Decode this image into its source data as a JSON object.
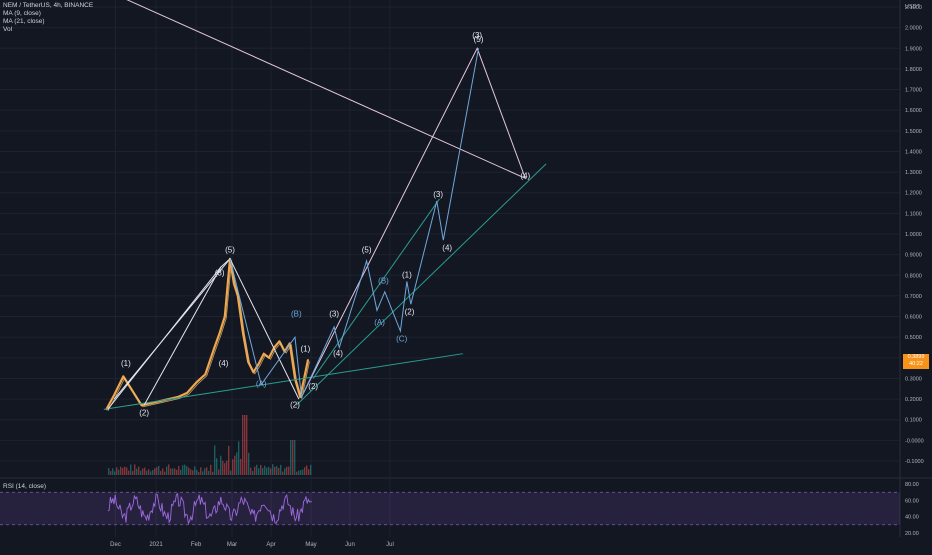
{
  "header": {
    "symbol_line": "NEM / TetherUS, 4h, BINANCE",
    "indicators": [
      "MA (9, close)",
      "MA (21, close)",
      "Vol"
    ],
    "rsi_label": "RSI (14, close)"
  },
  "price_tag": {
    "value": "0.3899",
    "countdown": "40:22"
  },
  "colors": {
    "background": "#131722",
    "grid": "#1e2230",
    "price_line": "#f0a64d",
    "ma_fast": "#e8c37a",
    "white_projection": "#e6e6f0",
    "blue_projection": "#6fa8dc",
    "pink_projection": "#e3c6dc",
    "teal_trendline": "#2a9d8f",
    "rsi_band": "#7e57c2",
    "rsi_line": "#9c6ade",
    "price_tag": "#f7931a"
  },
  "chart_data": [
    {
      "type": "line",
      "title": "NEM / TetherUS, 4h, BINANCE",
      "y_axis_unit": "USDT",
      "y_ticks": [
        "2.1000",
        "2.0000",
        "1.9000",
        "1.8000",
        "1.7000",
        "1.6000",
        "1.5000",
        "1.4000",
        "1.3000",
        "1.2000",
        "1.1000",
        "1.0000",
        "0.9000",
        "0.8000",
        "0.7000",
        "0.6000",
        "0.5000",
        "0.4000",
        "0.3000",
        "0.2000",
        "0.1000",
        "-0.0000",
        "-0.1000"
      ],
      "x_ticks": [
        "Dec",
        "2021",
        "Feb",
        "Mar",
        "Apr",
        "May",
        "Jun",
        "Jul"
      ],
      "last_price": 0.3899,
      "series": [
        {
          "key": "price",
          "x": [
            "Nov 25",
            "Dec 1",
            "Dec 8",
            "Dec 15",
            "Dec 22",
            "Dec 29",
            "Jan 5",
            "Jan 12",
            "Jan 19",
            "Jan 26",
            "Feb 2",
            "Feb 9",
            "Feb 16",
            "Feb 20",
            "Feb 24",
            "Feb 28",
            "Mar 3",
            "Mar 6",
            "Mar 10",
            "Mar 14",
            "Mar 18",
            "Mar 22",
            "Mar 26",
            "Mar 30",
            "Apr 3",
            "Apr 7",
            "Apr 11",
            "Apr 15",
            "Apr 19",
            "Apr 23",
            "Apr 26",
            "Apr 29"
          ],
          "values": [
            0.15,
            0.22,
            0.31,
            0.24,
            0.17,
            0.18,
            0.19,
            0.2,
            0.21,
            0.23,
            0.28,
            0.32,
            0.45,
            0.52,
            0.6,
            0.88,
            0.76,
            0.7,
            0.52,
            0.38,
            0.33,
            0.37,
            0.42,
            0.4,
            0.45,
            0.48,
            0.43,
            0.47,
            0.3,
            0.21,
            0.3,
            0.39
          ]
        }
      ],
      "wave_labels": [
        {
          "text": "(1)",
          "color": "white",
          "x": "Dec 10",
          "y": 0.36
        },
        {
          "text": "(2)",
          "color": "white",
          "x": "Dec 24",
          "y": 0.12
        },
        {
          "text": "(3)",
          "color": "white",
          "x": "Feb 20",
          "y": 0.8
        },
        {
          "text": "(4)",
          "color": "white",
          "x": "Feb 23",
          "y": 0.36
        },
        {
          "text": "(5)",
          "color": "white",
          "x": "Feb 28",
          "y": 0.91
        },
        {
          "text": "(A)",
          "color": "blue",
          "x": "Mar 24",
          "y": 0.26
        },
        {
          "text": "(B)",
          "color": "blue",
          "x": "Apr 20",
          "y": 0.6
        },
        {
          "text": "(1)",
          "color": "white",
          "x": "Apr 27",
          "y": 0.43
        },
        {
          "text": "(2)",
          "color": "white",
          "x": "Apr 19",
          "y": 0.16
        },
        {
          "text": "(2)",
          "color": "white",
          "x": "May 3",
          "y": 0.25
        },
        {
          "text": "(3)",
          "color": "white",
          "x": "May 19",
          "y": 0.6
        },
        {
          "text": "(4)",
          "color": "white",
          "x": "May 22",
          "y": 0.41
        },
        {
          "text": "(5)",
          "color": "white",
          "x": "Jun 13",
          "y": 0.91
        },
        {
          "text": "(A)",
          "color": "blue",
          "x": "Jun 23",
          "y": 0.56
        },
        {
          "text": "(B)",
          "color": "blue",
          "x": "Jun 26",
          "y": 0.76
        },
        {
          "text": "(C)",
          "color": "blue",
          "x": "Jul 10",
          "y": 0.48
        },
        {
          "text": "(1)",
          "color": "white",
          "x": "Jul 14",
          "y": 0.79
        },
        {
          "text": "(2)",
          "color": "white",
          "x": "Jul 16",
          "y": 0.61
        },
        {
          "text": "(3)",
          "color": "white",
          "x": "Aug 7",
          "y": 1.18
        },
        {
          "text": "(4)",
          "color": "white",
          "x": "Aug 14",
          "y": 0.92
        },
        {
          "text": "(3)",
          "color": "white",
          "x": "Sep 6",
          "y": 1.95
        },
        {
          "text": "(5)",
          "color": "white",
          "x": "Sep 7",
          "y": 1.93
        },
        {
          "text": "(4)",
          "color": "white",
          "x": "Oct 13",
          "y": 1.27
        }
      ]
    },
    {
      "type": "line",
      "title": "RSI (14, close)",
      "y_ticks": [
        "80.00",
        "60.00",
        "40.00",
        "20.00"
      ],
      "band": [
        30,
        70
      ]
    }
  ]
}
